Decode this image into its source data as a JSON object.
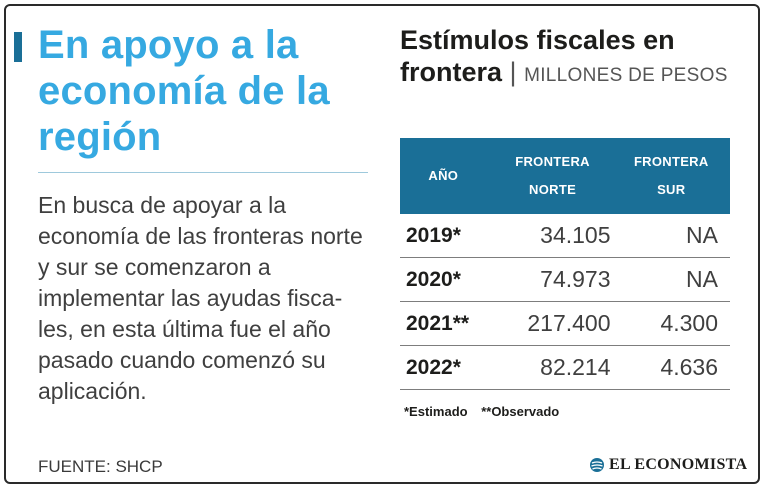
{
  "headline": "En apoyo a la economía de la región",
  "body": "En busca de apoyar a la economía de las fronteras norte y sur se comenzaron a implementar las ayudas fisca­les, en esta última fue el año pasado cuando comenzó su aplicación.",
  "source": "FUENTE: SHCP",
  "table": {
    "title": "Estímulos fiscales en frontera",
    "separator": "|",
    "unit": "MILLONES DE PESOS",
    "headers": {
      "year": "AÑO",
      "norte_1": "FRONTERA",
      "norte_2": "NORTE",
      "sur_1": "FRONTERA",
      "sur_2": "SUR"
    },
    "rows": [
      {
        "year": "2019*",
        "norte": "34.105",
        "sur": "NA"
      },
      {
        "year": "2020*",
        "norte": "74.973",
        "sur": "NA"
      },
      {
        "year": "2021**",
        "norte": "217.400",
        "sur": "4.300"
      },
      {
        "year": "2022*",
        "norte": "82.214",
        "sur": "4.636"
      }
    ],
    "notes": [
      "*Estimado",
      "**Observado"
    ]
  },
  "brand": "EL ECONOMISTA",
  "colors": {
    "accent": "#36a9e1",
    "table_header": "#1a6f97",
    "text": "#3f3f3f"
  }
}
